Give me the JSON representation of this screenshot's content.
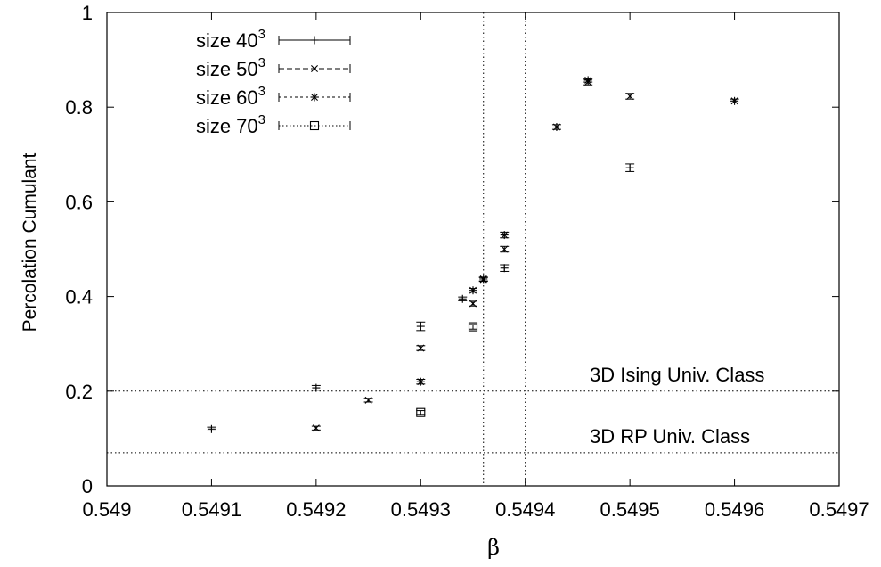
{
  "chart_data": {
    "type": "scatter",
    "title": "",
    "xlabel": "β",
    "ylabel": "Percolation Cumulant",
    "xlim": [
      0.549,
      0.5497
    ],
    "ylim": [
      0,
      1
    ],
    "xticks": [
      "0.549",
      "0.5491",
      "0.5492",
      "0.5493",
      "0.5494",
      "0.5495",
      "0.5496",
      "0.5497"
    ],
    "yticks": [
      "0",
      "0.2",
      "0.4",
      "0.6",
      "0.8",
      "1"
    ],
    "grid": false,
    "legend_position": "top-left",
    "series": [
      {
        "name": "size 40",
        "name_superscript": "3",
        "marker": "plus",
        "line_style": "solid",
        "points": [
          {
            "x": 0.5491,
            "y": 0.12,
            "err": 0.004
          },
          {
            "x": 0.5492,
            "y": 0.207,
            "err": 0.005
          },
          {
            "x": 0.5493,
            "y": 0.337,
            "err": 0.009
          },
          {
            "x": 0.54934,
            "y": 0.395,
            "err": 0.004
          },
          {
            "x": 0.54938,
            "y": 0.46,
            "err": 0.007
          },
          {
            "x": 0.5495,
            "y": 0.672,
            "err": 0.008
          }
        ]
      },
      {
        "name": "size 50",
        "name_superscript": "3",
        "marker": "cross",
        "line_style": "dashed",
        "points": [
          {
            "x": 0.5492,
            "y": 0.122,
            "err": 0.004
          },
          {
            "x": 0.54925,
            "y": 0.181,
            "err": 0.004
          },
          {
            "x": 0.5493,
            "y": 0.291,
            "err": 0.005
          },
          {
            "x": 0.54935,
            "y": 0.385,
            "err": 0.005
          },
          {
            "x": 0.54936,
            "y": 0.436,
            "err": 0.004
          },
          {
            "x": 0.54938,
            "y": 0.5,
            "err": 0.006
          },
          {
            "x": 0.54946,
            "y": 0.853,
            "err": 0.006
          },
          {
            "x": 0.5495,
            "y": 0.823,
            "err": 0.006
          }
        ]
      },
      {
        "name": "size 60",
        "name_superscript": "3",
        "marker": "star",
        "line_style": "short-dashed",
        "points": [
          {
            "x": 0.5493,
            "y": 0.22,
            "err": 0.005
          },
          {
            "x": 0.54935,
            "y": 0.413,
            "err": 0.004
          },
          {
            "x": 0.54936,
            "y": 0.437,
            "err": 0.004
          },
          {
            "x": 0.54938,
            "y": 0.53,
            "err": 0.006
          },
          {
            "x": 0.54943,
            "y": 0.758,
            "err": 0.005
          },
          {
            "x": 0.54946,
            "y": 0.857,
            "err": 0.004
          },
          {
            "x": 0.5496,
            "y": 0.813,
            "err": 0.004
          }
        ]
      },
      {
        "name": "size 70",
        "name_superscript": "3",
        "marker": "box",
        "line_style": "dotted",
        "points": [
          {
            "x": 0.5493,
            "y": 0.155,
            "err": 0.004
          },
          {
            "x": 0.54935,
            "y": 0.336,
            "err": 0.005
          }
        ]
      }
    ],
    "reference_lines": [
      {
        "orientation": "horizontal",
        "y": 0.2,
        "label": "3D Ising Univ. Class"
      },
      {
        "orientation": "horizontal",
        "y": 0.07,
        "label": "3D RP Univ. Class"
      },
      {
        "orientation": "vertical",
        "x": 0.54936
      },
      {
        "orientation": "vertical",
        "x": 0.5494
      }
    ]
  }
}
